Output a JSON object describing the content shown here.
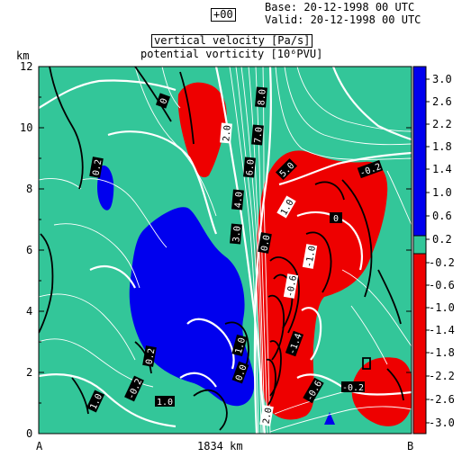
{
  "header": {
    "forecast_step": "+00",
    "base": "Base: 20-12-1998  00 UTC",
    "valid": "Valid: 20-12-1998  00 UTC"
  },
  "fields": {
    "line1": "vertical velocity [Pa/s]",
    "line2": "potential vorticity [10⁶PVU]"
  },
  "axes": {
    "y_unit": "km",
    "y_ticks": [
      "12",
      "10",
      "8",
      "6",
      "4",
      "2",
      "0"
    ],
    "x_left": "A",
    "x_mid": "1834 km",
    "x_right": "B"
  },
  "colorbar": {
    "labels": [
      "3.0",
      "2.6",
      "2.2",
      "1.8",
      "1.4",
      "1.0",
      "0.6",
      "0.2",
      "-0.2",
      "-0.6",
      "-1.0",
      "-1.4",
      "-1.8",
      "-2.2",
      "-2.6",
      "-3.0"
    ],
    "colors": {
      "positive": "#0000ee",
      "neutral": "#33c699",
      "negative": "#ee0000"
    }
  },
  "contour_labels": [
    "0",
    "8.0",
    "7.0",
    "2.0",
    "6.0",
    "5.0",
    "4.0",
    "3.0",
    "1.0",
    "0.0",
    "0.2",
    "-0.2",
    "-0.6",
    "-1.0",
    "-1.4"
  ]
}
